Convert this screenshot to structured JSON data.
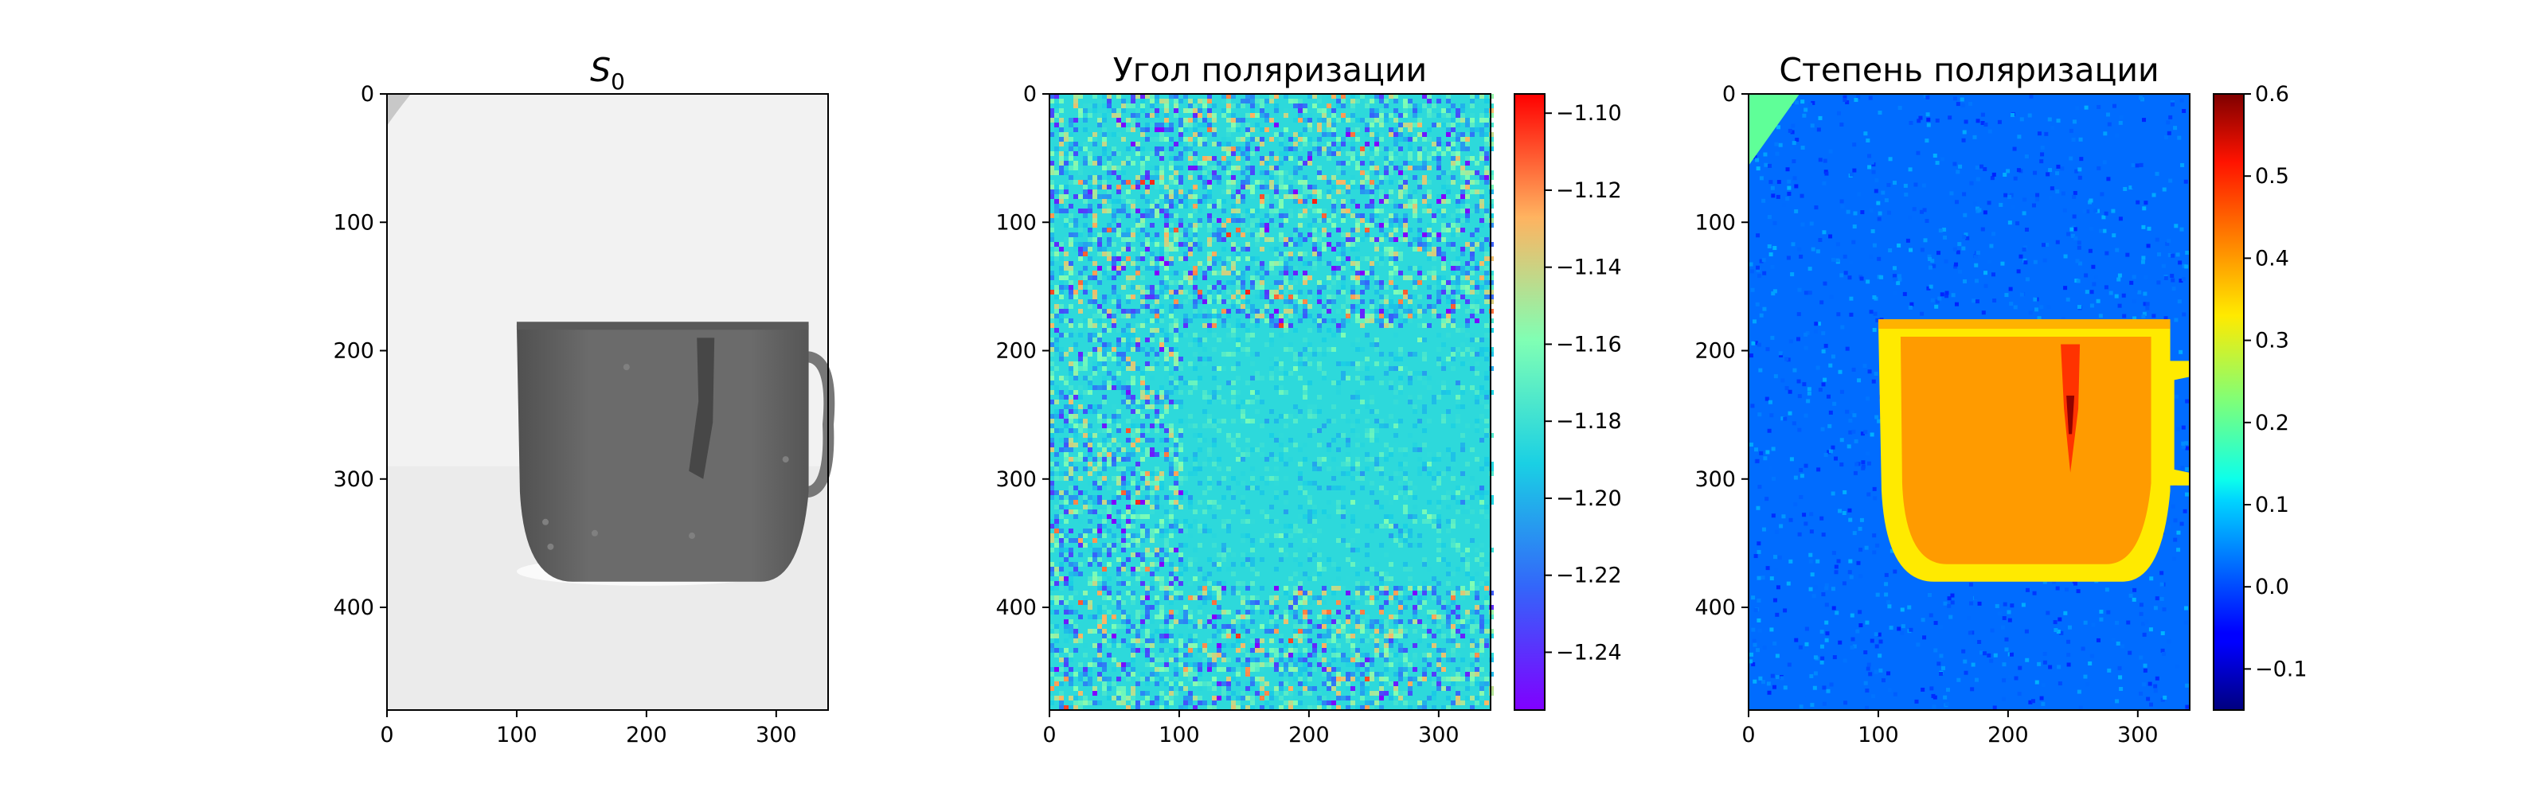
{
  "chart_data": [
    {
      "type": "heatmap",
      "title_symbol": "S",
      "title_subscript": "0",
      "colormap": "gray",
      "xlim": [
        0,
        340
      ],
      "ylim": [
        480,
        0
      ],
      "x_ticks": [
        0,
        100,
        200,
        300
      ],
      "y_ticks": [
        0,
        100,
        200,
        300,
        400
      ],
      "image_content": {
        "background_level": 0.95,
        "cup_level": 0.42,
        "cup_body": {
          "x_range": [
            100,
            325
          ],
          "y_range": [
            180,
            380
          ]
        },
        "cup_handle": {
          "x_range": [
            320,
            340
          ],
          "y_range": [
            205,
            310
          ]
        },
        "dark_streak": {
          "x": 245,
          "y_range": [
            190,
            300
          ],
          "level": 0.28
        }
      }
    },
    {
      "type": "heatmap",
      "title": "Угол поляризации",
      "colormap": "rainbow",
      "xlim": [
        0,
        340
      ],
      "ylim": [
        480,
        0
      ],
      "x_ticks": [
        0,
        100,
        200,
        300
      ],
      "y_ticks": [
        0,
        100,
        200,
        300,
        400
      ],
      "colorbar": {
        "min": -1.255,
        "max": -1.095,
        "ticks": [
          -1.1,
          -1.12,
          -1.14,
          -1.16,
          -1.18,
          -1.2,
          -1.22,
          -1.24
        ],
        "tick_labels": [
          "−1.10",
          "−1.12",
          "−1.14",
          "−1.16",
          "−1.18",
          "−1.20",
          "−1.22",
          "−1.24"
        ]
      },
      "image_content": {
        "mean_value": -1.185,
        "noise_amplitude": 0.03,
        "smooth_region": {
          "x_range": [
            100,
            340
          ],
          "y_range": [
            180,
            380
          ]
        }
      }
    },
    {
      "type": "heatmap",
      "title": "Степень поляризации",
      "colormap": "jet",
      "xlim": [
        0,
        340
      ],
      "ylim": [
        480,
        0
      ],
      "x_ticks": [
        0,
        100,
        200,
        300
      ],
      "y_ticks": [
        0,
        100,
        200,
        300,
        400
      ],
      "colorbar": {
        "min": -0.15,
        "max": 0.6,
        "ticks": [
          0.6,
          0.5,
          0.4,
          0.3,
          0.2,
          0.1,
          0.0,
          -0.1
        ],
        "tick_labels": [
          "0.6",
          "0.5",
          "0.4",
          "0.3",
          "0.2",
          "0.1",
          "0.0",
          "−0.1"
        ]
      },
      "image_content": {
        "background_value": 0.02,
        "cup_value": 0.4,
        "cup_rim_value": 0.33,
        "streak_value": 0.55,
        "corner_value": 0.2
      }
    }
  ]
}
